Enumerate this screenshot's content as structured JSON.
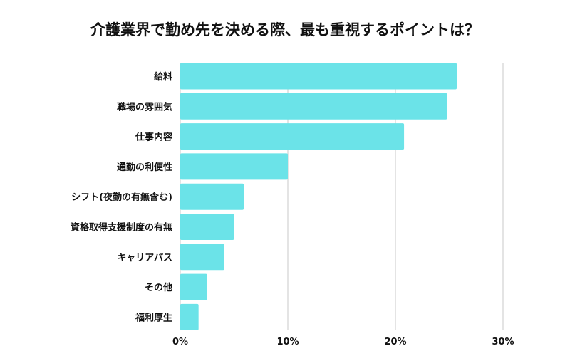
{
  "chart_data": {
    "type": "bar",
    "orientation": "horizontal",
    "title": "介護業界で勤め先を決める際、最も重視するポイントは？",
    "categories": [
      "給料",
      "職場の雰囲気",
      "仕事内容",
      "通勤の利便性",
      "シフト(夜勤の有無含む)",
      "資格取得支援制度の有無",
      "キャリアパス",
      "その他",
      "福利厚生"
    ],
    "values": [
      25.7,
      24.8,
      20.8,
      10.0,
      5.9,
      5.0,
      4.1,
      2.5,
      1.7
    ],
    "xlim": [
      0,
      30
    ],
    "xticks": [
      0,
      10,
      20,
      30
    ],
    "xtick_labels": [
      "0%",
      "10%",
      "20%",
      "30%"
    ],
    "grid": "vertical",
    "bar_color": "#6be3e8",
    "xlabel": "",
    "ylabel": ""
  }
}
